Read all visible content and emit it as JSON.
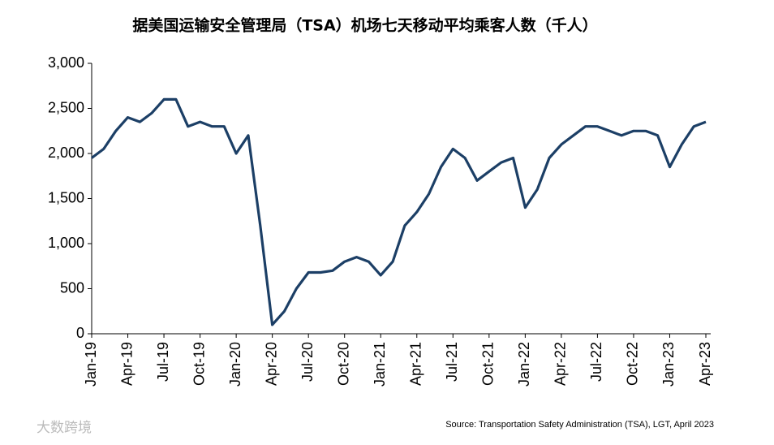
{
  "chart_data": {
    "type": "line",
    "title": "据美国运输安全管理局（TSA）机场七天移动平均乘客人数（千人）",
    "source": "Source: Transportation Safety Administration (TSA), LGT,  April 2023",
    "watermark": "大数跨境",
    "categories": [
      "Jan-19",
      null,
      null,
      "Apr-19",
      null,
      null,
      "Jul-19",
      null,
      null,
      "Oct-19",
      null,
      null,
      "Jan-20",
      null,
      null,
      "Apr-20",
      null,
      null,
      "Jul-20",
      null,
      null,
      "Oct-20",
      null,
      null,
      "Jan-21",
      null,
      null,
      "Apr-21",
      null,
      null,
      "Jul-21",
      null,
      null,
      "Oct-21",
      null,
      null,
      "Jan-22",
      null,
      null,
      "Apr-22",
      null,
      null,
      "Jul-22",
      null,
      null,
      "Oct-22",
      null,
      null,
      "Jan-23",
      null,
      null,
      "Apr-23"
    ],
    "series": [
      {
        "name": "TSA",
        "color": "#1c3f66",
        "values": [
          1950,
          2050,
          2250,
          2400,
          2350,
          2450,
          2600,
          2600,
          2300,
          2350,
          2300,
          2300,
          2000,
          2200,
          1200,
          100,
          250,
          500,
          680,
          680,
          700,
          800,
          850,
          800,
          650,
          800,
          1200,
          1350,
          1550,
          1850,
          2050,
          1950,
          1700,
          1800,
          1900,
          1950,
          1400,
          1600,
          1950,
          2100,
          2200,
          2300,
          2300,
          2250,
          2200,
          2250,
          2250,
          2200,
          1850,
          2100,
          2300,
          2350
        ]
      }
    ],
    "ylim": [
      0,
      3000
    ],
    "yticks": [
      0,
      500,
      {
        "value": 1000,
        "label": "1,000"
      },
      {
        "value": 1500,
        "label": "1,500"
      },
      {
        "value": 2000,
        "label": "2,000"
      },
      {
        "value": 2500,
        "label": "2,500"
      },
      {
        "value": 3000,
        "label": "3,000"
      }
    ]
  }
}
